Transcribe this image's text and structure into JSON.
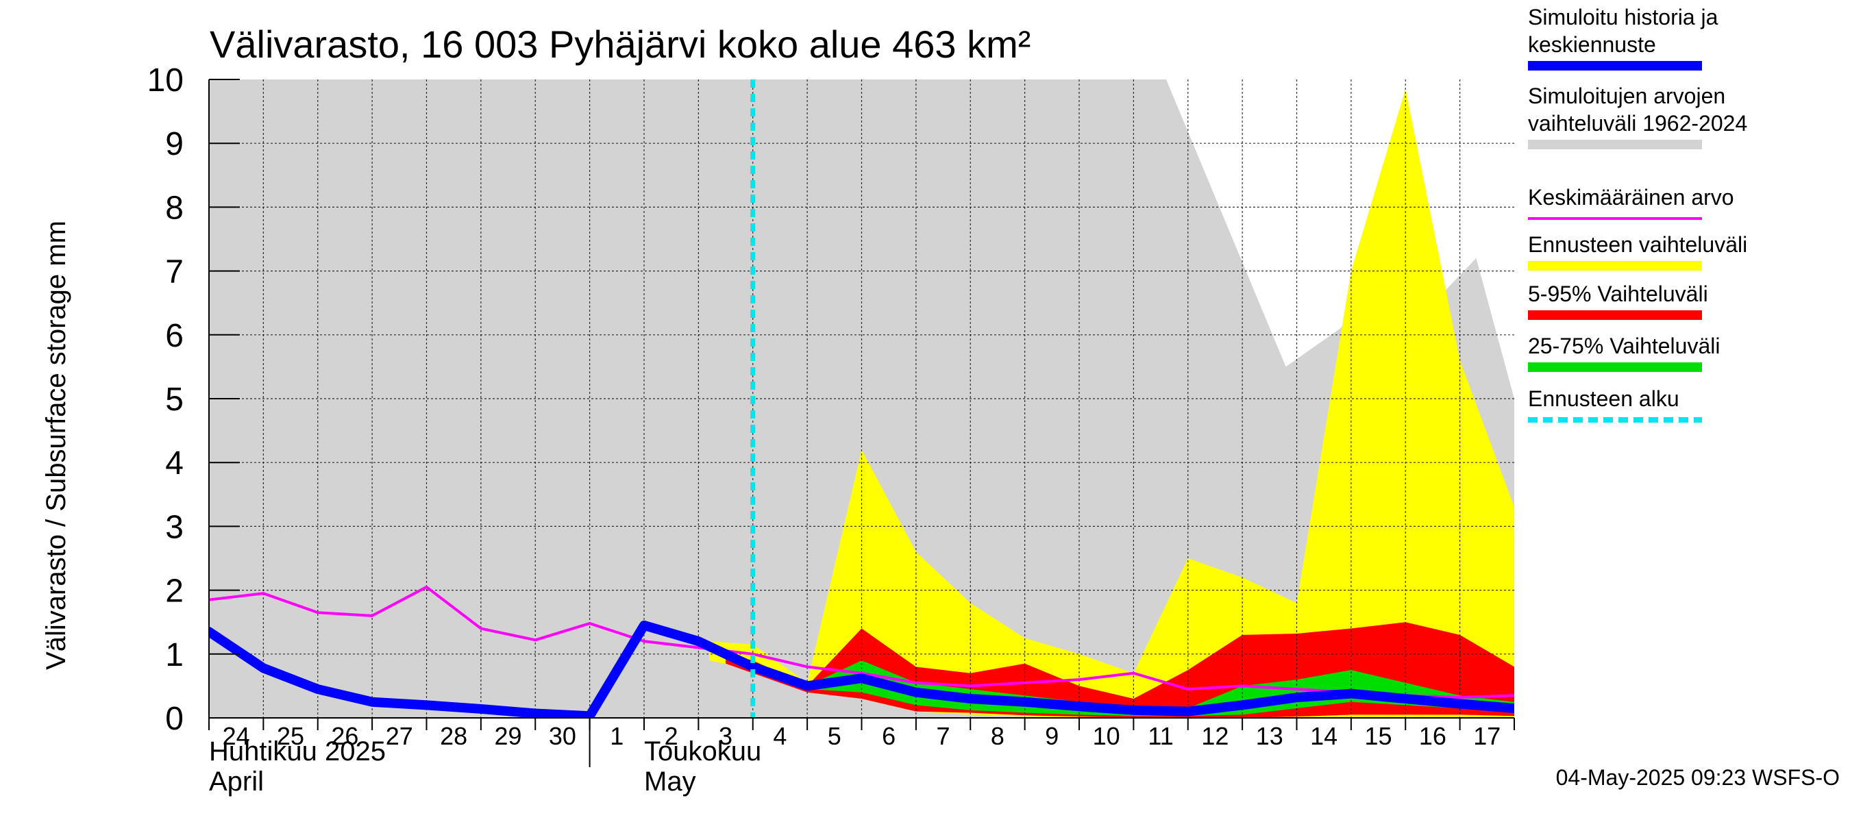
{
  "chart_data": {
    "type": "area",
    "title": "Välivarasto, 16 003 Pyhäjärvi koko alue 463 km²",
    "ylabel": "Välivarasto / Subsurface storage  mm",
    "ylim": [
      0,
      10
    ],
    "yticks": [
      "0",
      "1",
      "2",
      "3",
      "4",
      "5",
      "6",
      "7",
      "8",
      "9",
      "10"
    ],
    "xlim": [
      0,
      24
    ],
    "x_tick_labels": [
      {
        "x": 0,
        "label": "24"
      },
      {
        "x": 1,
        "label": "25"
      },
      {
        "x": 2,
        "label": "26"
      },
      {
        "x": 3,
        "label": "27"
      },
      {
        "x": 4,
        "label": "28"
      },
      {
        "x": 5,
        "label": "29"
      },
      {
        "x": 6,
        "label": "30"
      },
      {
        "x": 7,
        "label": "1"
      },
      {
        "x": 8,
        "label": "2"
      },
      {
        "x": 9,
        "label": "3"
      },
      {
        "x": 10,
        "label": "4"
      },
      {
        "x": 11,
        "label": "5"
      },
      {
        "x": 12,
        "label": "6"
      },
      {
        "x": 13,
        "label": "7"
      },
      {
        "x": 14,
        "label": "8"
      },
      {
        "x": 15,
        "label": "9"
      },
      {
        "x": 16,
        "label": "10"
      },
      {
        "x": 17,
        "label": "11"
      },
      {
        "x": 18,
        "label": "12"
      },
      {
        "x": 19,
        "label": "13"
      },
      {
        "x": 20,
        "label": "14"
      },
      {
        "x": 21,
        "label": "15"
      },
      {
        "x": 22,
        "label": "16"
      },
      {
        "x": 23,
        "label": "17"
      }
    ],
    "month_labels": [
      {
        "x": 0,
        "line1": "Huhtikuu  2025",
        "line2": "April"
      },
      {
        "x": 8,
        "line1": "Toukokuu",
        "line2": "May"
      }
    ],
    "month_boundary_x": 7,
    "forecast_start_x": 10,
    "grid": true,
    "series": [
      {
        "name": "Simuloitujen arvojen vaihteluväli 1962-2024",
        "kind": "band",
        "color": "#d3d3d3",
        "x": [
          0,
          17.6,
          19.8,
          20.8,
          21.8,
          22.4,
          23.3,
          24
        ],
        "upper": [
          10,
          10,
          5.5,
          6.1,
          7.1,
          6.4,
          7.2,
          5.0
        ],
        "lower": [
          0,
          0,
          0,
          0,
          0,
          0,
          0,
          0
        ]
      },
      {
        "name": "Ennusteen vaihteluväli",
        "kind": "band",
        "color": "#ffff00",
        "x": [
          9.2,
          10,
          11,
          12,
          13,
          14,
          15,
          16,
          17,
          18,
          19,
          20,
          21,
          22,
          23,
          24
        ],
        "upper": [
          1.2,
          1.15,
          0.55,
          4.2,
          2.6,
          1.8,
          1.25,
          1.0,
          0.7,
          2.5,
          2.2,
          1.8,
          7.0,
          9.85,
          5.6,
          3.3
        ],
        "lower": [
          0.9,
          0.75,
          0.4,
          0.3,
          0.1,
          0.05,
          0.02,
          0.0,
          0.0,
          0.0,
          0.0,
          0.0,
          0.0,
          0.0,
          0.0,
          0.0
        ]
      },
      {
        "name": "5-95% Vaihteluväli",
        "kind": "band",
        "color": "#ff0000",
        "x": [
          9.5,
          10,
          11,
          12,
          13,
          14,
          15,
          16,
          17,
          18,
          19,
          20,
          21,
          22,
          23,
          24
        ],
        "upper": [
          1.0,
          0.9,
          0.5,
          1.4,
          0.8,
          0.7,
          0.85,
          0.5,
          0.3,
          0.75,
          1.3,
          1.32,
          1.4,
          1.5,
          1.3,
          0.8
        ],
        "lower": [
          0.85,
          0.7,
          0.4,
          0.3,
          0.1,
          0.08,
          0.04,
          0.02,
          0.0,
          0.0,
          0.0,
          0.02,
          0.05,
          0.05,
          0.05,
          0.03
        ]
      },
      {
        "name": "25-75% Vaihteluväli",
        "kind": "band",
        "color": "#00dd00",
        "x": [
          10,
          11,
          12,
          13,
          14,
          15,
          16,
          17,
          18,
          19,
          20,
          21,
          22,
          23,
          24
        ],
        "upper": [
          0.8,
          0.5,
          0.9,
          0.55,
          0.45,
          0.35,
          0.25,
          0.15,
          0.15,
          0.5,
          0.6,
          0.75,
          0.55,
          0.35,
          0.25
        ],
        "lower": [
          0.75,
          0.45,
          0.4,
          0.2,
          0.12,
          0.08,
          0.05,
          0.03,
          0.03,
          0.05,
          0.15,
          0.25,
          0.2,
          0.15,
          0.1
        ]
      },
      {
        "name": "Keskimääräinen arvo",
        "kind": "line",
        "color": "#ff00ff",
        "x": [
          0,
          1,
          2,
          3,
          4,
          5,
          6,
          7,
          8,
          9,
          10,
          11,
          12,
          13,
          14,
          15,
          16,
          17,
          18,
          19,
          20,
          21,
          22,
          23,
          24
        ],
        "values": [
          1.85,
          1.95,
          1.65,
          1.6,
          2.05,
          1.4,
          1.22,
          1.48,
          1.2,
          1.1,
          1.0,
          0.8,
          0.7,
          0.55,
          0.5,
          0.55,
          0.6,
          0.7,
          0.45,
          0.5,
          0.45,
          0.4,
          0.35,
          0.32,
          0.35
        ]
      },
      {
        "name": "Simuloitu historia ja keskiennuste",
        "kind": "line",
        "color": "#0000ff",
        "x": [
          0,
          1,
          2,
          3,
          4,
          5,
          6,
          7,
          8,
          9,
          10,
          11,
          12,
          13,
          14,
          15,
          16,
          17,
          18,
          19,
          20,
          21,
          22,
          23,
          24
        ],
        "values": [
          1.35,
          0.78,
          0.45,
          0.25,
          0.2,
          0.14,
          0.07,
          0.03,
          1.45,
          1.2,
          0.8,
          0.5,
          0.62,
          0.4,
          0.3,
          0.25,
          0.18,
          0.12,
          0.1,
          0.2,
          0.32,
          0.38,
          0.3,
          0.22,
          0.15
        ]
      }
    ],
    "legend_position": "right",
    "legend": [
      {
        "text": "Simuloitu historia ja keskiennuste",
        "color": "#0000ff",
        "style": "thick"
      },
      {
        "text": "Simuloitujen arvojen vaihteluväli 1962-2024",
        "color": "#d3d3d3",
        "style": "thick"
      },
      {
        "text": "Keskimääräinen arvo",
        "color": "#ff00ff",
        "style": "thin"
      },
      {
        "text": "Ennusteen vaihteluväli",
        "color": "#ffff00",
        "style": "thick"
      },
      {
        "text": "5-95% Vaihteluväli",
        "color": "#ff0000",
        "style": "thick"
      },
      {
        "text": "25-75% Vaihteluväli",
        "color": "#00dd00",
        "style": "thick"
      },
      {
        "text": "Ennusteen alku",
        "color": "#00e5ee",
        "style": "dashed"
      }
    ],
    "footer": "04-May-2025 09:23 WSFS-O"
  }
}
